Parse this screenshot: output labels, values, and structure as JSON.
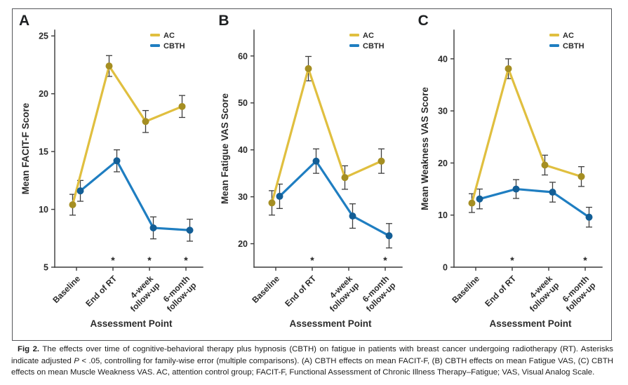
{
  "figure": {
    "border_color": "#55565a",
    "caption": {
      "fig_label": "Fig 2.",
      "before_p": " The effects over time of cognitive-behavioral therapy plus hypnosis (CBTH) on fatigue in patients with breast cancer undergoing radiotherapy (RT). Asterisks indicate adjusted ",
      "p_symbol": "P",
      "after_p": " < .05, controlling for family-wise error (multiple comparisons). (A) CBTH effects on mean FACIT-F, (B) CBTH effects on mean Fatigue VAS, (C) CBTH effects on mean Muscle Weakness VAS. AC, attention control group; FACIT-F, Functional Assessment of Chronic Illness Therapy–Fatigue; VAS, Visual Analog Scale."
    }
  },
  "style": {
    "ac_line": "#E0BF3F",
    "ac_marker": "#A58E22",
    "cbth_line": "#1F7EC1",
    "cbth_marker": "#135E96",
    "error_bar": "#3E3E3E",
    "axis": "#3A3A3A",
    "text": "#2B2B2B",
    "asterisk": "#222222"
  },
  "chart_data": [
    {
      "type": "line",
      "letter": "A",
      "ylabel": "Mean FACIT-F Score",
      "xlabel": "Assessment Point",
      "categories": [
        [
          "Baseline"
        ],
        [
          "End of RT"
        ],
        [
          "4-week",
          "follow-up"
        ],
        [
          "6-month",
          "follow-up"
        ]
      ],
      "y_ticks": [
        5,
        10,
        15,
        20,
        25
      ],
      "y_domain": [
        5,
        25.5
      ],
      "legend_position": "top-right",
      "grid": false,
      "series": [
        {
          "name": "AC",
          "color": "#E0BF3F",
          "marker_color": "#A58E22",
          "values": [
            10.4,
            22.4,
            17.6,
            18.9
          ],
          "errors": [
            0.9,
            0.9,
            0.95,
            0.95
          ]
        },
        {
          "name": "CBTH",
          "color": "#1F7EC1",
          "marker_color": "#135E96",
          "values": [
            11.6,
            14.2,
            8.4,
            8.2
          ],
          "errors": [
            0.9,
            0.95,
            0.95,
            0.95
          ]
        }
      ],
      "asterisk_indices": [
        1,
        2,
        3
      ]
    },
    {
      "type": "line",
      "letter": "B",
      "ylabel": "Mean Fatigue VAS Score",
      "xlabel": "Assessment Point",
      "categories": [
        [
          "Baseline"
        ],
        [
          "End of RT"
        ],
        [
          "4-week",
          "follow-up"
        ],
        [
          "6-month",
          "follow-up"
        ]
      ],
      "y_ticks": [
        20,
        30,
        40,
        50,
        60
      ],
      "y_domain": [
        15,
        65.5
      ],
      "legend_position": "top-right",
      "grid": false,
      "series": [
        {
          "name": "AC",
          "color": "#E0BF3F",
          "marker_color": "#A58E22",
          "values": [
            28.7,
            57.3,
            34.1,
            37.6
          ],
          "errors": [
            2.6,
            2.6,
            2.5,
            2.6
          ]
        },
        {
          "name": "CBTH",
          "color": "#1F7EC1",
          "marker_color": "#135E96",
          "values": [
            30.1,
            37.6,
            25.9,
            21.7
          ],
          "errors": [
            2.6,
            2.6,
            2.6,
            2.6
          ]
        }
      ],
      "asterisk_indices": [
        1,
        3
      ]
    },
    {
      "type": "line",
      "letter": "C",
      "ylabel": "Mean Weakness VAS Score",
      "xlabel": "Assessment Point",
      "categories": [
        [
          "Baseline"
        ],
        [
          "End of RT"
        ],
        [
          "4-week",
          "follow-up"
        ],
        [
          "6-month",
          "follow-up"
        ]
      ],
      "y_ticks": [
        0,
        10,
        20,
        30,
        40
      ],
      "y_domain": [
        0,
        45.5
      ],
      "legend_position": "top-right",
      "grid": false,
      "series": [
        {
          "name": "AC",
          "color": "#E0BF3F",
          "marker_color": "#A58E22",
          "values": [
            12.3,
            38.1,
            19.6,
            17.4
          ],
          "errors": [
            1.8,
            1.9,
            1.9,
            1.9
          ]
        },
        {
          "name": "CBTH",
          "color": "#1F7EC1",
          "marker_color": "#135E96",
          "values": [
            13.1,
            15.0,
            14.4,
            9.6
          ],
          "errors": [
            1.9,
            1.8,
            1.9,
            1.9
          ]
        }
      ],
      "asterisk_indices": [
        1,
        3
      ]
    }
  ]
}
